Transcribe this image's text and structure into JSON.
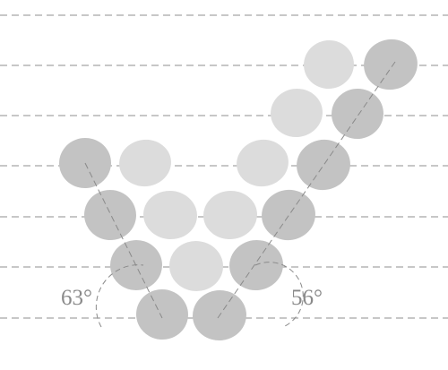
{
  "diagram": {
    "angle_left": "63°",
    "angle_right": "56°"
  },
  "colors": {
    "dark_blob": "#c3c3c3",
    "light_blob": "#dcdcdc",
    "guide_line": "#8a8a8a",
    "angle_text": "#8a8a8a"
  }
}
